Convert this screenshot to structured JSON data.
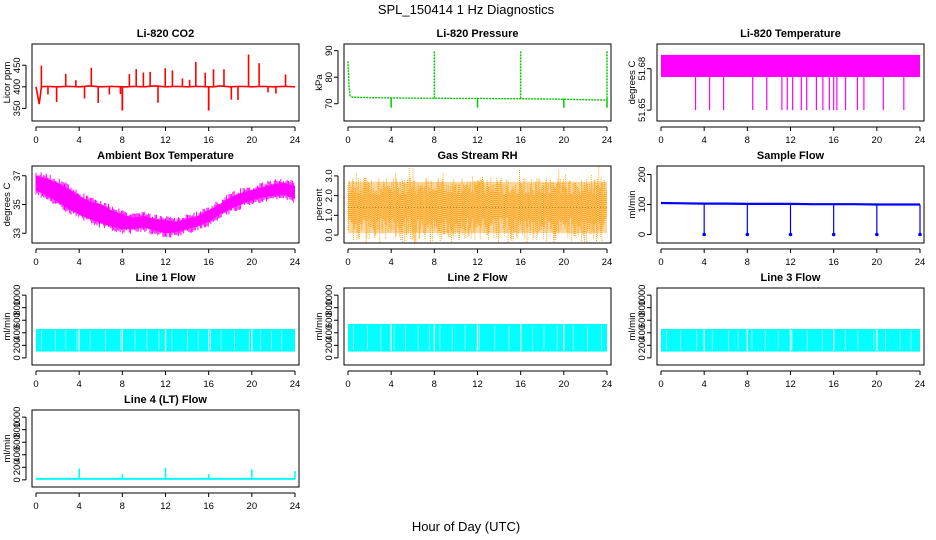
{
  "figure": {
    "title": "SPL_150414  1 Hz Diagnostics",
    "xlabel": "Hour of Day (UTC)"
  },
  "chart_data": [
    {
      "id": "co2",
      "title": "Li-820 CO2",
      "type": "line",
      "color": "#ff0000",
      "ylabel": "Licor ppm",
      "xlim": [
        0,
        24
      ],
      "ylim": [
        330,
        490
      ],
      "xticks": [
        0,
        4,
        8,
        12,
        16,
        20,
        24
      ],
      "yticks": [
        350,
        400,
        450
      ],
      "x": [
        0,
        0.3,
        0.5,
        1,
        2,
        3,
        4,
        5,
        6,
        7,
        8,
        8.5,
        9,
        10,
        11,
        12,
        13,
        14,
        15,
        16,
        16.5,
        17,
        18,
        19,
        20,
        21,
        22,
        23,
        24
      ],
      "y": [
        400,
        360,
        400,
        401,
        400,
        401,
        400,
        402,
        400,
        401,
        400,
        400,
        401,
        400,
        402,
        400,
        401,
        400,
        401,
        400,
        400,
        402,
        400,
        401,
        400,
        401,
        400,
        401,
        400
      ],
      "spike_max": 480,
      "spike_min": 345
    },
    {
      "id": "pressure",
      "title": "Li-820 Pressure",
      "type": "line",
      "color": "#00cc00",
      "ylabel": "kPa",
      "xlim": [
        0,
        24
      ],
      "ylim": [
        65,
        91
      ],
      "xticks": [
        0,
        4,
        8,
        12,
        16,
        20,
        24
      ],
      "yticks": [
        70,
        80,
        90
      ],
      "x": [
        0,
        0.1,
        0.2,
        0.4,
        1,
        2,
        4,
        6,
        8,
        10,
        12,
        14,
        16,
        18,
        20,
        22,
        23.5,
        24
      ],
      "y": [
        86,
        76,
        73,
        72.5,
        72.4,
        72.3,
        72.2,
        72.1,
        72.1,
        72.0,
        72.0,
        71.9,
        71.9,
        71.8,
        71.7,
        71.5,
        71.4,
        71.4
      ],
      "spikes_up": [
        8,
        16,
        24
      ],
      "spike_max": 90,
      "dips": [
        4,
        12,
        20,
        24
      ]
    },
    {
      "id": "li820temp",
      "title": "Li-820 Temperature",
      "type": "area",
      "color": "#ff00ff",
      "ylabel": "degrees C",
      "xlim": [
        0,
        24
      ],
      "ylim": [
        51.645,
        51.695
      ],
      "xticks": [
        0,
        4,
        8,
        12,
        16,
        20,
        24
      ],
      "yticks": [
        51.65,
        51.68
      ],
      "band_high": 51.69,
      "band_low": 51.674,
      "drops_x": [
        3.2,
        4.5,
        5.8,
        8.5,
        9.8,
        11.2,
        11.7,
        12.2,
        13.0,
        13.5,
        14.4,
        15.0,
        15.6,
        16.0,
        16.3,
        17.1,
        18.2,
        18.8,
        20.6,
        22.5
      ]
    },
    {
      "id": "ambient",
      "title": "Ambient Box Temperature",
      "type": "area",
      "color": "#ff00ff",
      "ylabel": "degrees C",
      "xlim": [
        0,
        24
      ],
      "ylim": [
        32.6,
        37.4
      ],
      "xticks": [
        0,
        4,
        8,
        12,
        16,
        20,
        24
      ],
      "yticks": [
        33,
        35,
        37
      ],
      "x": [
        0,
        1,
        2,
        3,
        4,
        5,
        6,
        7,
        8,
        9,
        10,
        11,
        12,
        13,
        14,
        15,
        16,
        17,
        18,
        19,
        20,
        21,
        22,
        23,
        24
      ],
      "y_high": [
        37.0,
        36.8,
        36.5,
        36.1,
        35.6,
        35.2,
        35.0,
        34.6,
        34.3,
        34.1,
        34.2,
        34.0,
        33.9,
        33.8,
        34.0,
        34.2,
        34.6,
        35.0,
        35.5,
        35.8,
        36.0,
        36.2,
        36.4,
        36.5,
        36.3
      ],
      "y_low": [
        36.0,
        35.6,
        35.2,
        34.7,
        34.3,
        34.0,
        33.7,
        33.5,
        33.3,
        33.3,
        33.4,
        33.2,
        33.0,
        33.1,
        33.3,
        33.5,
        33.8,
        34.3,
        34.7,
        35.0,
        35.3,
        35.5,
        35.6,
        35.7,
        35.4
      ]
    },
    {
      "id": "rh",
      "title": "Gas Stream RH",
      "type": "scatter",
      "color": "#ff9900",
      "ylabel": "percent",
      "xlim": [
        0,
        24
      ],
      "ylim": [
        -0.2,
        3.3
      ],
      "xticks": [
        0,
        4,
        8,
        12,
        16,
        20,
        24
      ],
      "yticks": [
        0.0,
        1.0,
        2.0,
        3.0
      ],
      "band_high": 2.7,
      "band_low": 0.1,
      "center": 1.4
    },
    {
      "id": "sampleflow",
      "title": "Sample Flow",
      "type": "line",
      "color": "#0000ff",
      "ylabel": "ml/min",
      "xlim": [
        0,
        24
      ],
      "ylim": [
        -15,
        215
      ],
      "xticks": [
        0,
        4,
        8,
        12,
        16,
        20,
        24
      ],
      "yticks": [
        0,
        100,
        200
      ],
      "x": [
        0,
        2,
        4,
        6,
        8,
        10,
        12,
        14,
        16,
        18,
        20,
        22,
        24
      ],
      "y": [
        105,
        104,
        103,
        103,
        102,
        102,
        102,
        101,
        101,
        101,
        100,
        100,
        100
      ],
      "dips": [
        4,
        8,
        12,
        16,
        20,
        24
      ],
      "dip_min": 0
    },
    {
      "id": "line1",
      "title": "Line 1 Flow",
      "type": "area",
      "color": "#00ffff",
      "ylabel": "ml/min",
      "xlim": [
        0,
        24
      ],
      "ylim": [
        -50,
        1050
      ],
      "xticks": [
        0,
        4,
        8,
        12,
        16,
        20,
        24
      ],
      "yticks": [
        0,
        200,
        400,
        600,
        800,
        1000
      ],
      "band_high": 460,
      "band_low": 100,
      "gaps": [
        4,
        8,
        12,
        16,
        20
      ]
    },
    {
      "id": "line2",
      "title": "Line 2 Flow",
      "type": "area",
      "color": "#00ffff",
      "ylabel": "ml/min",
      "xlim": [
        0,
        24
      ],
      "ylim": [
        -50,
        1050
      ],
      "xticks": [
        0,
        4,
        8,
        12,
        16,
        20,
        24
      ],
      "yticks": [
        0,
        200,
        400,
        600,
        800,
        1000
      ],
      "band_high": 540,
      "band_low": 100,
      "gaps": [
        4,
        8,
        12,
        16,
        20
      ]
    },
    {
      "id": "line3",
      "title": "Line 3 Flow",
      "type": "area",
      "color": "#00ffff",
      "ylabel": "ml/min",
      "xlim": [
        0,
        24
      ],
      "ylim": [
        -50,
        1050
      ],
      "xticks": [
        0,
        4,
        8,
        12,
        16,
        20,
        24
      ],
      "yticks": [
        0,
        200,
        400,
        600,
        800,
        1000
      ],
      "band_high": 460,
      "band_low": 100,
      "gaps": [
        4,
        8,
        12,
        16,
        20
      ]
    },
    {
      "id": "line4",
      "title": "Line 4 (LT) Flow",
      "type": "line",
      "color": "#00ffff",
      "ylabel": "ml/min",
      "xlim": [
        0,
        24
      ],
      "ylim": [
        -50,
        1050
      ],
      "xticks": [
        0,
        4,
        8,
        12,
        16,
        20,
        24
      ],
      "yticks": [
        0,
        200,
        400,
        600,
        800,
        1000
      ],
      "baseline": 15,
      "spikes": [
        [
          4,
          180
        ],
        [
          8,
          90
        ],
        [
          12,
          190
        ],
        [
          16,
          90
        ],
        [
          20,
          170
        ],
        [
          24,
          140
        ]
      ]
    }
  ]
}
